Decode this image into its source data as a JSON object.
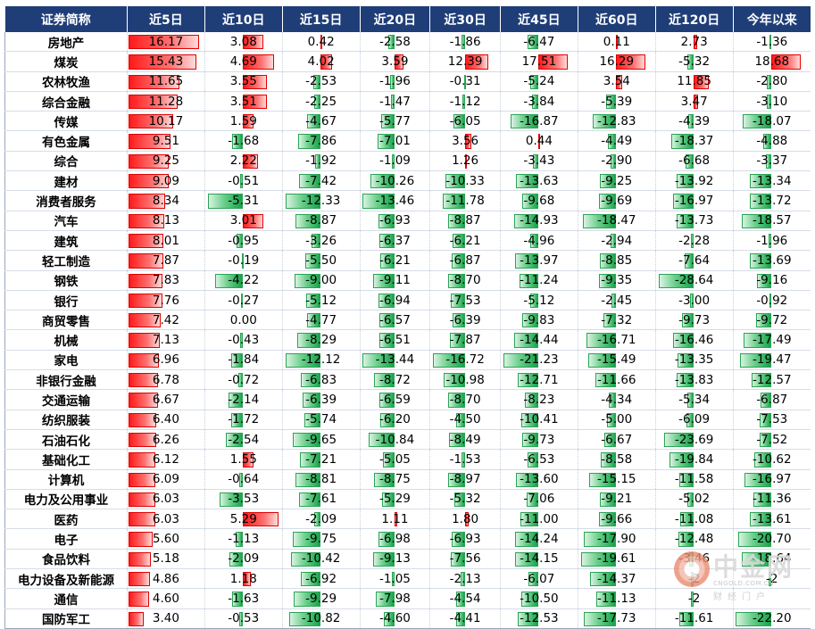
{
  "headers": [
    "证券简称",
    "近5日",
    "近10日",
    "近15日",
    "近20日",
    "近30日",
    "近45日",
    "近60日",
    "近120日",
    "今年以来"
  ],
  "rows": [
    {
      "name": "房地产",
      "values": [
        "16.17",
        "3.08",
        "0.42",
        "-2.58",
        "-1.86",
        "-6.47",
        "0.11",
        "2.73",
        "-1.36"
      ]
    },
    {
      "name": "煤炭",
      "values": [
        "15.43",
        "4.69",
        "4.02",
        "3.59",
        "12.39",
        "17.51",
        "16.29",
        "-5.32",
        "18.68"
      ]
    },
    {
      "name": "农林牧渔",
      "values": [
        "11.65",
        "3.55",
        "-2.53",
        "-1.96",
        "-0.31",
        "-5.24",
        "3.54",
        "11.85",
        "-2.80"
      ]
    },
    {
      "name": "综合金融",
      "values": [
        "11.28",
        "3.51",
        "-2.25",
        "-1.47",
        "-1.12",
        "-3.84",
        "-5.39",
        "3.47",
        "-3.10"
      ]
    },
    {
      "name": "传媒",
      "values": [
        "10.17",
        "1.59",
        "-4.67",
        "-5.77",
        "-6.05",
        "-16.87",
        "-12.83",
        "-4.39",
        "-18.07"
      ]
    },
    {
      "name": "有色金属",
      "values": [
        "9.51",
        "-1.68",
        "-7.86",
        "-7.01",
        "3.56",
        "0.44",
        "-4.49",
        "-18.37",
        "-4.88"
      ]
    },
    {
      "name": "综合",
      "values": [
        "9.25",
        "2.22",
        "-1.92",
        "-1.09",
        "1.26",
        "-3.43",
        "-2.90",
        "-6.68",
        "-3.37"
      ]
    },
    {
      "name": "建材",
      "values": [
        "9.09",
        "-0.51",
        "-7.42",
        "-10.26",
        "-10.33",
        "-13.63",
        "-9.25",
        "-13.92",
        "-13.34"
      ]
    },
    {
      "name": "消费者服务",
      "values": [
        "8.34",
        "-5.31",
        "-12.33",
        "-13.46",
        "-11.78",
        "-9.68",
        "-9.69",
        "-16.97",
        "-13.72"
      ]
    },
    {
      "name": "汽车",
      "values": [
        "8.13",
        "3.01",
        "-8.87",
        "-6.93",
        "-8.87",
        "-14.93",
        "-18.47",
        "-13.73",
        "-18.57"
      ]
    },
    {
      "name": "建筑",
      "values": [
        "8.01",
        "-0.95",
        "-3.26",
        "-6.37",
        "-6.21",
        "-4.96",
        "-2.94",
        "-2.28",
        "-1.96"
      ]
    },
    {
      "name": "轻工制造",
      "values": [
        "7.87",
        "-0.19",
        "-5.50",
        "-6.21",
        "-6.87",
        "-13.97",
        "-8.85",
        "-7.64",
        "-13.69"
      ]
    },
    {
      "name": "钢铁",
      "values": [
        "7.83",
        "-4.22",
        "-9.00",
        "-9.11",
        "-8.70",
        "-11.24",
        "-9.35",
        "-28.64",
        "-9.16"
      ]
    },
    {
      "name": "银行",
      "values": [
        "7.76",
        "-0.27",
        "-5.12",
        "-6.94",
        "-7.53",
        "-5.12",
        "-2.45",
        "-3.00",
        "-0.92"
      ]
    },
    {
      "name": "商贸零售",
      "values": [
        "7.42",
        "0.00",
        "-4.77",
        "-6.57",
        "-6.39",
        "-9.83",
        "-7.32",
        "-9.73",
        "-9.72"
      ]
    },
    {
      "name": "机械",
      "values": [
        "7.13",
        "-0.43",
        "-8.29",
        "-6.51",
        "-7.87",
        "-14.44",
        "-16.71",
        "-16.46",
        "-17.49"
      ]
    },
    {
      "name": "家电",
      "values": [
        "6.96",
        "-1.84",
        "-12.12",
        "-13.44",
        "-16.72",
        "-21.23",
        "-15.49",
        "-13.35",
        "-19.47"
      ]
    },
    {
      "name": "非银行金融",
      "values": [
        "6.78",
        "-0.72",
        "-6.83",
        "-8.72",
        "-10.98",
        "-12.71",
        "-11.66",
        "-13.83",
        "-12.57"
      ]
    },
    {
      "name": "交通运输",
      "values": [
        "6.67",
        "-2.14",
        "-6.39",
        "-6.59",
        "-8.70",
        "-8.23",
        "-4.34",
        "-5.34",
        "-6.87"
      ]
    },
    {
      "name": "纺织服装",
      "values": [
        "6.40",
        "-1.72",
        "-5.74",
        "-6.20",
        "-4.50",
        "-10.41",
        "-5.00",
        "-6.09",
        "-7.53"
      ]
    },
    {
      "name": "石油石化",
      "values": [
        "6.26",
        "-2.54",
        "-9.65",
        "-10.84",
        "-8.49",
        "-9.73",
        "-6.67",
        "-23.69",
        "-7.52"
      ]
    },
    {
      "name": "基础化工",
      "values": [
        "6.12",
        "1.55",
        "-7.21",
        "-5.05",
        "-1.53",
        "-6.53",
        "-8.58",
        "-19.84",
        "-10.62"
      ]
    },
    {
      "name": "计算机",
      "values": [
        "6.09",
        "-0.64",
        "-8.81",
        "-8.75",
        "-8.97",
        "-13.60",
        "-15.15",
        "-11.58",
        "-16.97"
      ]
    },
    {
      "name": "电力及公用事业",
      "values": [
        "6.03",
        "-3.53",
        "-7.61",
        "-5.29",
        "-5.32",
        "-7.06",
        "-9.21",
        "-5.02",
        "-11.36"
      ]
    },
    {
      "name": "医药",
      "values": [
        "6.03",
        "5.29",
        "-2.09",
        "1.11",
        "1.80",
        "-11.00",
        "-9.66",
        "-11.08",
        "-13.61"
      ]
    },
    {
      "name": "电子",
      "values": [
        "5.60",
        "-1.13",
        "-9.75",
        "-6.98",
        "-6.93",
        "-14.24",
        "-17.90",
        "-12.48",
        "-20.70"
      ]
    },
    {
      "name": "食品饮料",
      "values": [
        "5.18",
        "-2.09",
        "-10.42",
        "-9.13",
        "-7.56",
        "-14.15",
        "-19.61",
        "-3.46",
        "-18.64"
      ]
    },
    {
      "name": "电力设备及新能源",
      "values": [
        "4.86",
        "1.18",
        "-6.92",
        "-1.05",
        "-2.13",
        "-6.07",
        "-14.37",
        "-2",
        "-2"
      ]
    },
    {
      "name": "通信",
      "values": [
        "4.60",
        "-1.63",
        "-9.29",
        "-7.98",
        "-4.54",
        "-10.50",
        "-11.13",
        "-2",
        ""
      ]
    },
    {
      "name": "国防军工",
      "values": [
        "3.40",
        "-0.53",
        "-10.82",
        "-4.60",
        "-4.41",
        "-12.53",
        "-17.73",
        "-11.61",
        "-22.20"
      ]
    }
  ],
  "watermark": {
    "cn": "中金网",
    "en": "CNGOLD.COM.CN",
    "sub": "财经门户"
  },
  "colors": {
    "header_bg": "#1f3e78",
    "positive_bar": "#ff1a1a",
    "negative_bar": "#17a34a"
  }
}
